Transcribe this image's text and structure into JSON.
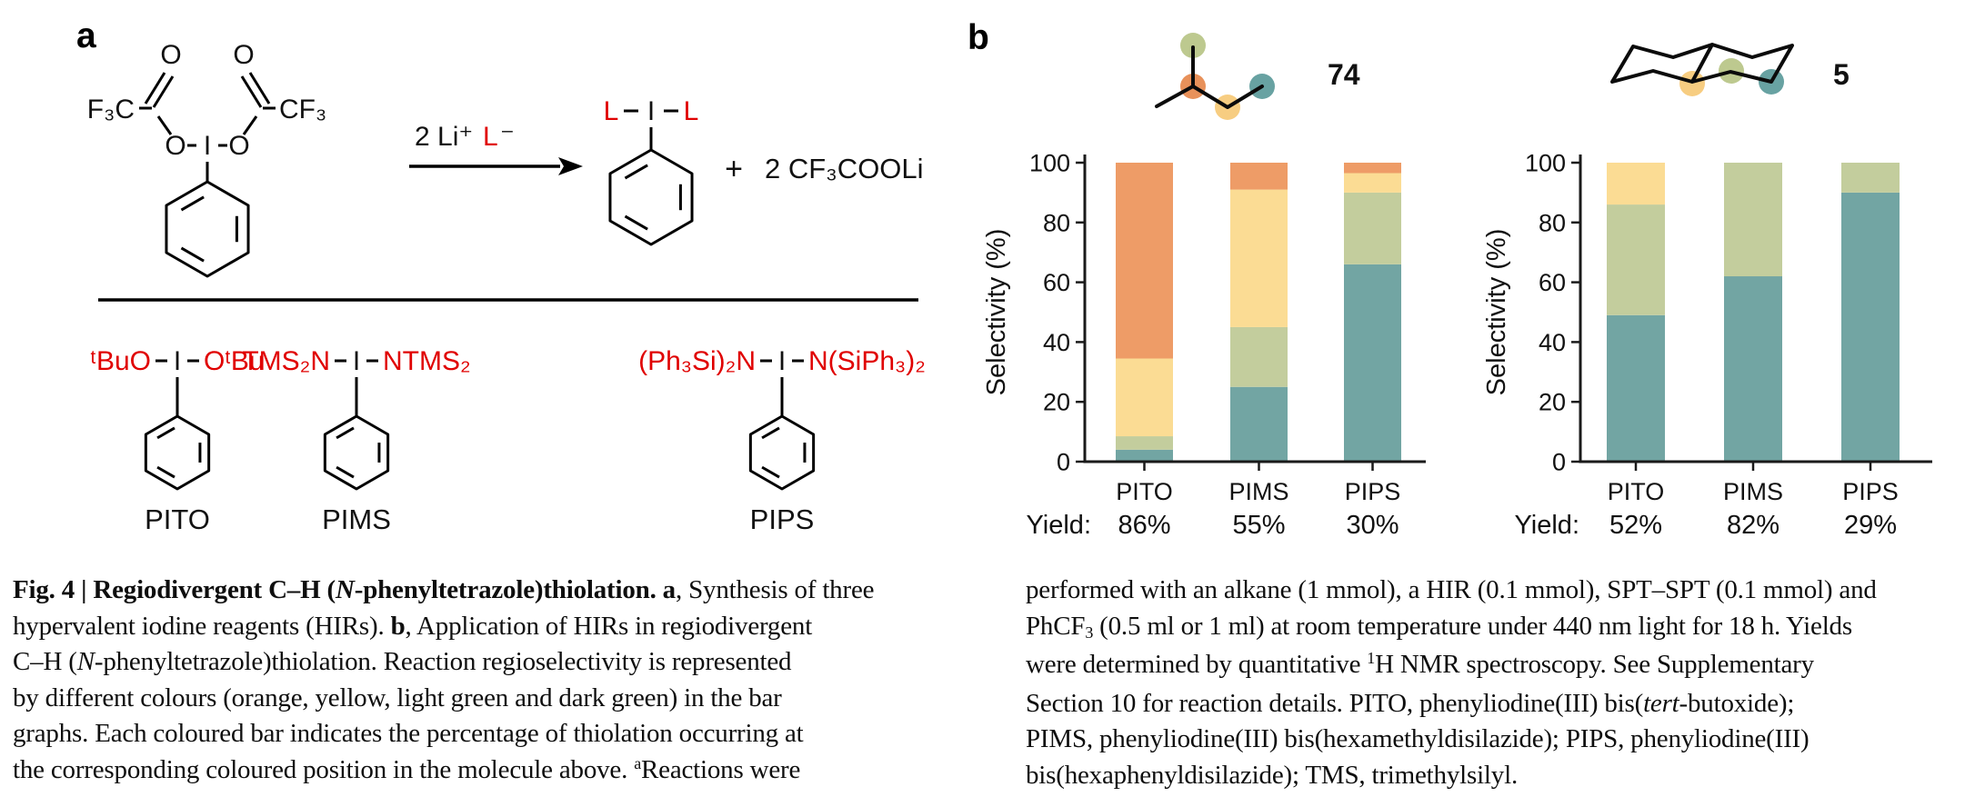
{
  "colors": {
    "orange": "#ee9c67",
    "yellow": "#fbdc94",
    "light_green": "#c3cd9d",
    "dark_green": "#72a5a3",
    "dot_orange": "#e8915a",
    "dot_yellow": "#f7cd81",
    "dot_green": "#bdc98f",
    "dot_teal": "#68a2a2",
    "red_text": "#e00000"
  },
  "panel_a": {
    "label": "a",
    "reactant": {
      "f3c": "F₃C",
      "o_carb_left": "O",
      "o_carb_right": "O",
      "o_est_left": "O",
      "o_est_right": "O",
      "iodine": "I",
      "cf3": "CF₃"
    },
    "arrow": {
      "pre": "2 Li⁺",
      "ligand": "L",
      "minus": "⁻"
    },
    "product": {
      "l_left": "L",
      "iodine": "I",
      "l_right": "L"
    },
    "byproduct": {
      "plus": "+",
      "formula": "2 CF₃COOLi"
    },
    "reagents": [
      {
        "left": "ᵗBuO",
        "center": "I",
        "right": "OᵗBu",
        "name": "PITO"
      },
      {
        "left": "TMS₂N",
        "center": "I",
        "right": "NTMS₂",
        "name": "PIMS"
      },
      {
        "left": "(Ph₃Si)₂N",
        "center": "I",
        "right": "N(SiPh₃)₂",
        "name": "PIPS"
      }
    ]
  },
  "panel_b": {
    "label": "b"
  },
  "chart_data": [
    {
      "type": "bar",
      "stacked": true,
      "molecule": "2-methylbutane with coloured C–H positions",
      "value_label": "74",
      "ylabel": "Selectivity (%)",
      "ylim": [
        0,
        100
      ],
      "yticks": [
        0,
        20,
        40,
        60,
        80,
        100
      ],
      "categories": [
        "PITO",
        "PIMS",
        "PIPS"
      ],
      "yield_label": "Yield:",
      "yields": [
        "86%",
        "55%",
        "30%"
      ],
      "series": [
        {
          "name": "dark green",
          "color_key": "dark_green",
          "values": [
            4,
            25,
            66
          ]
        },
        {
          "name": "light green",
          "color_key": "light_green",
          "values": [
            4.5,
            20,
            24
          ]
        },
        {
          "name": "yellow",
          "color_key": "yellow",
          "values": [
            26,
            46,
            6.5
          ]
        },
        {
          "name": "orange",
          "color_key": "orange",
          "values": [
            65.5,
            9,
            3.5
          ]
        }
      ]
    },
    {
      "type": "bar",
      "stacked": true,
      "molecule": "trans-decalin with coloured C–H positions",
      "value_label": "5",
      "ylabel": "Selectivity (%)",
      "ylim": [
        0,
        100
      ],
      "yticks": [
        0,
        20,
        40,
        60,
        80,
        100
      ],
      "categories": [
        "PITO",
        "PIMS",
        "PIPS"
      ],
      "yield_label": "Yield:",
      "yields": [
        "52%",
        "82%",
        "29%"
      ],
      "series": [
        {
          "name": "dark green",
          "color_key": "dark_green",
          "values": [
            49,
            62,
            90
          ]
        },
        {
          "name": "light green",
          "color_key": "light_green",
          "values": [
            37,
            38,
            10
          ]
        },
        {
          "name": "yellow",
          "color_key": "yellow",
          "values": [
            14,
            0,
            0
          ]
        },
        {
          "name": "orange",
          "color_key": "orange",
          "values": [
            0,
            0,
            0
          ]
        }
      ]
    }
  ],
  "caption": {
    "left": [
      [
        {
          "t": "Fig. 4 | Regiodivergent C–H (",
          "b": 1
        },
        {
          "t": "N",
          "b": 1,
          "i": 1
        },
        {
          "t": "-phenyltetrazole)thiolation. ",
          "b": 1
        },
        {
          "t": "a",
          "b": 1
        },
        {
          "t": ", Synthesis of three"
        }
      ],
      [
        {
          "t": "hypervalent iodine reagents (HIRs). "
        },
        {
          "t": "b",
          "b": 1
        },
        {
          "t": ", Application of HIRs in regiodivergent"
        }
      ],
      [
        {
          "t": "C–H ("
        },
        {
          "t": "N",
          "i": 1
        },
        {
          "t": "-phenyltetrazole)thiolation. Reaction regioselectivity is represented"
        }
      ],
      [
        {
          "t": "by different colours (orange, yellow, light green and dark green) in the bar"
        }
      ],
      [
        {
          "t": "graphs. Each coloured bar indicates the percentage of thiolation occurring at"
        }
      ],
      [
        {
          "t": "the corresponding coloured position in the molecule above. "
        },
        {
          "t": "a",
          "sup": 1
        },
        {
          "t": "Reactions were"
        }
      ]
    ],
    "right": [
      [
        {
          "t": "performed with an alkane (1 mmol), a HIR (0.1 mmol), SPT–SPT (0.1 mmol) and"
        }
      ],
      [
        {
          "t": "PhCF"
        },
        {
          "t": "3",
          "sub": 1
        },
        {
          "t": " (0.5 ml or 1 ml) at room temperature under 440 nm light for 18 h. Yields"
        }
      ],
      [
        {
          "t": "were determined by quantitative "
        },
        {
          "t": "1",
          "sup": 1
        },
        {
          "t": "H NMR spectroscopy. See Supplementary"
        }
      ],
      [
        {
          "t": "Section 10 for reaction details. PITO, phenyliodine(III) bis("
        },
        {
          "t": "tert",
          "i": 1
        },
        {
          "t": "-butoxide);"
        }
      ],
      [
        {
          "t": "PIMS, phenyliodine(III) bis(hexamethyldisilazide); PIPS, phenyliodine(III)"
        }
      ],
      [
        {
          "t": "bis(hexaphenyldisilazide); TMS, trimethylsilyl."
        }
      ]
    ]
  }
}
